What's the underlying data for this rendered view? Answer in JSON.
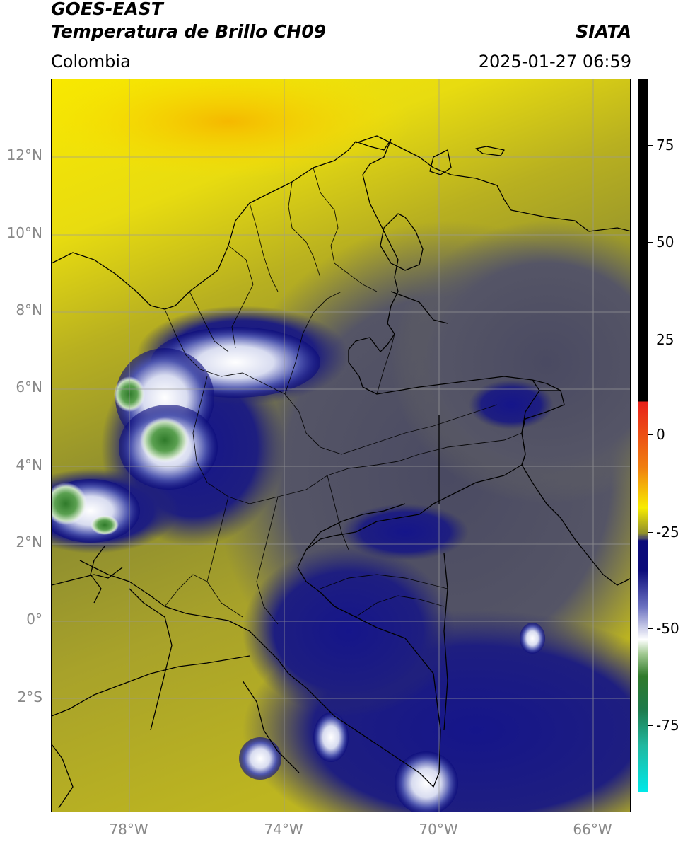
{
  "header": {
    "satellite": "GOES-EAST",
    "product": "Temperatura de Brillo CH09",
    "organization": "SIATA",
    "region": "Colombia",
    "timestamp": "2025-01-27 06:59"
  },
  "map": {
    "lon_range": [
      -80,
      -65
    ],
    "lat_range": [
      -5,
      14
    ],
    "lat_labels": [
      "12°N",
      "10°N",
      "8°N",
      "6°N",
      "4°N",
      "2°N",
      "0°",
      "2°S"
    ],
    "lon_labels": [
      "78°W",
      "74°W",
      "70°W",
      "66°W"
    ]
  },
  "colorbar": {
    "tick_labels": [
      "75",
      "50",
      "25",
      "0",
      "-25",
      "-50",
      "-75"
    ],
    "colors": {
      "black": "#000000",
      "red": "#e8201a",
      "orange": "#f07f10",
      "yellow": "#f8ec00",
      "olive": "#8f8f2a",
      "gray": "#555560",
      "navy": "#0a0a7a",
      "white": "#ffffff",
      "green": "#2f7a2a",
      "teal": "#20b8a0",
      "cyan": "#00e8e8"
    }
  }
}
